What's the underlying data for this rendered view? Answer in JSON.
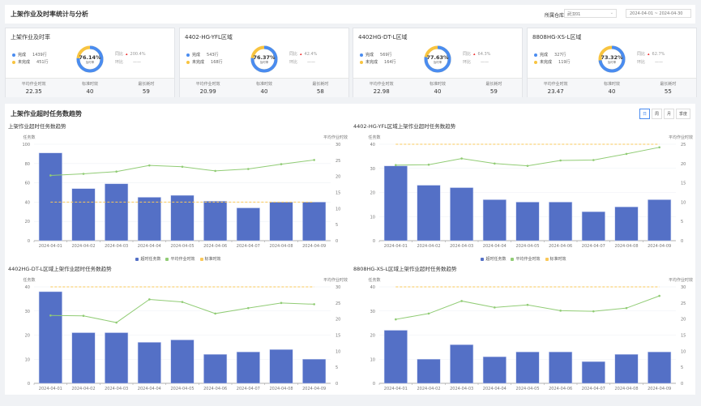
{
  "header": {
    "title": "上架作业及时率统计与分析",
    "warehouse_label": "所属仓库",
    "warehouse_value": "武汉01",
    "date_range": "2024-04-01 ~ 2024-04-30"
  },
  "colors": {
    "done": "#4a8cf0",
    "undone": "#f8c440",
    "bar": "#5470c6",
    "line": "#91cc75",
    "standard": "#fac858",
    "up_arrow": "#e33333"
  },
  "labels": {
    "done": "完成",
    "undone": "未完成",
    "rate": "及时率",
    "yoy": "同比",
    "mom": "环比",
    "avg": "平均作业时效",
    "std": "标准时效",
    "max": "最长耗时"
  },
  "cards": [
    {
      "title": "上架作业及时率",
      "done": "1439行",
      "undone": "451行",
      "rate": "76.14%",
      "rate_value": 76.14,
      "yoy": "200.4%",
      "mom": "——",
      "avg": "22.35",
      "std": "40",
      "max": "59"
    },
    {
      "title": "4402-HG-YFL区域",
      "done": "543行",
      "undone": "168行",
      "rate": "76.37%",
      "rate_value": 76.37,
      "yoy": "42.4%",
      "mom": "——",
      "avg": "20.99",
      "std": "40",
      "max": "58"
    },
    {
      "title": "4402HG-DT-L区域",
      "done": "569行",
      "undone": "164行",
      "rate": "77.63%",
      "rate_value": 77.63,
      "yoy": "64.3%",
      "mom": "——",
      "avg": "22.98",
      "std": "40",
      "max": "59"
    },
    {
      "title": "8808HG-XS-L区域",
      "done": "327行",
      "undone": "119行",
      "rate": "73.32%",
      "rate_value": 73.32,
      "yoy": "62.7%",
      "mom": "——",
      "avg": "23.47",
      "std": "40",
      "max": "55"
    }
  ],
  "trend": {
    "title": "上架作业超时任务数趋势",
    "tabs": [
      "日",
      "周",
      "月",
      "季度"
    ],
    "active_tab": "日"
  },
  "chart_data": [
    {
      "type": "bar",
      "title": "上架作业超时任务数趋势",
      "ylabel": "任务数",
      "y2label": "平均作业时效",
      "ylim": [
        0,
        100
      ],
      "y2lim": [
        0,
        30
      ],
      "yticks": [
        0,
        20,
        40,
        60,
        80,
        100
      ],
      "y2ticks": [
        0,
        5,
        10,
        15,
        20,
        25,
        30
      ],
      "categories": [
        "2024-04-01",
        "2024-04-02",
        "2024-04-03",
        "2024-04-04",
        "2024-04-05",
        "2024-04-06",
        "2024-04-07",
        "2024-04-08",
        "2024-04-09"
      ],
      "series": [
        {
          "name": "超时任务数",
          "type": "bar",
          "axis": "left",
          "values": [
            91,
            54,
            59,
            45,
            47,
            41,
            34,
            40,
            40
          ]
        },
        {
          "name": "平均作业时效",
          "type": "line",
          "axis": "right",
          "values": [
            20.3,
            20.8,
            21.5,
            23.4,
            23.0,
            21.7,
            22.3,
            23.8,
            25.1
          ]
        },
        {
          "name": "标准时效",
          "type": "line-dashed",
          "axis": "left",
          "values": [
            40,
            40,
            40,
            40,
            40,
            40,
            40,
            40,
            40
          ]
        }
      ],
      "legend": "bottom",
      "grid": true
    },
    {
      "type": "bar",
      "title": "4402-HG-YFL区域上架作业超时任务数趋势",
      "ylabel": "任务数",
      "y2label": "平均作业时效",
      "ylim": [
        0,
        40
      ],
      "y2lim": [
        0,
        25
      ],
      "yticks": [
        0,
        10,
        20,
        30,
        40
      ],
      "y2ticks": [
        0,
        5,
        10,
        15,
        20,
        25
      ],
      "categories": [
        "2024-04-01",
        "2024-04-02",
        "2024-04-03",
        "2024-04-04",
        "2024-04-05",
        "2024-04-06",
        "2024-04-07",
        "2024-04-08",
        "2024-04-09"
      ],
      "series": [
        {
          "name": "超时任务数",
          "type": "bar",
          "axis": "left",
          "values": [
            31,
            23,
            22,
            17,
            16,
            16,
            12,
            14,
            17
          ]
        },
        {
          "name": "平均作业时效",
          "type": "line",
          "axis": "right",
          "values": [
            19.6,
            19.7,
            21.3,
            20.0,
            19.4,
            20.8,
            20.9,
            22.5,
            24.2
          ]
        },
        {
          "name": "标准时效",
          "type": "line-dashed",
          "axis": "left",
          "values": [
            40,
            40,
            40,
            40,
            40,
            40,
            40,
            40,
            40
          ]
        }
      ],
      "legend": "bottom",
      "grid": true
    },
    {
      "type": "bar",
      "title": "4402HG-DT-L区域上架作业超时任务数趋势",
      "ylabel": "任务数",
      "y2label": "平均作业时效",
      "ylim": [
        0,
        40
      ],
      "y2lim": [
        0,
        30
      ],
      "yticks": [
        0,
        10,
        20,
        30,
        40
      ],
      "y2ticks": [
        0,
        5,
        10,
        15,
        20,
        25,
        30
      ],
      "categories": [
        "2024-04-01",
        "2024-04-02",
        "2024-04-03",
        "2024-04-04",
        "2024-04-05",
        "2024-04-06",
        "2024-04-07",
        "2024-04-08",
        "2024-04-09"
      ],
      "series": [
        {
          "name": "超时任务数",
          "type": "bar",
          "axis": "left",
          "values": [
            38,
            21,
            21,
            17,
            18,
            12,
            13,
            14,
            10
          ]
        },
        {
          "name": "平均作业时效",
          "type": "line",
          "axis": "right",
          "values": [
            21.1,
            21.0,
            18.9,
            26.1,
            25.3,
            21.7,
            23.4,
            25.0,
            24.6
          ]
        },
        {
          "name": "标准时效",
          "type": "line-dashed",
          "axis": "left",
          "values": [
            40,
            40,
            40,
            40,
            40,
            40,
            40,
            40,
            40
          ]
        }
      ],
      "grid": true
    },
    {
      "type": "bar",
      "title": "8808HG-XS-L区域上架作业超时任务数趋势",
      "ylabel": "任务数",
      "y2label": "平均作业时效",
      "ylim": [
        0,
        40
      ],
      "y2lim": [
        0,
        30
      ],
      "yticks": [
        0,
        10,
        20,
        30,
        40
      ],
      "y2ticks": [
        0,
        5,
        10,
        15,
        20,
        25,
        30
      ],
      "categories": [
        "2024-04-01",
        "2024-04-02",
        "2024-04-03",
        "2024-04-04",
        "2024-04-05",
        "2024-04-06",
        "2024-04-07",
        "2024-04-08",
        "2024-04-09"
      ],
      "series": [
        {
          "name": "超时任务数",
          "type": "bar",
          "axis": "left",
          "values": [
            22,
            10,
            16,
            11,
            13,
            13,
            9,
            12,
            13
          ]
        },
        {
          "name": "平均作业时效",
          "type": "line",
          "axis": "right",
          "values": [
            19.9,
            21.7,
            25.6,
            23.6,
            24.4,
            22.6,
            22.4,
            23.4,
            27.2
          ]
        },
        {
          "name": "标准时效",
          "type": "line-dashed",
          "axis": "left",
          "values": [
            40,
            40,
            40,
            40,
            40,
            40,
            40,
            40,
            40
          ]
        }
      ],
      "grid": true
    }
  ]
}
